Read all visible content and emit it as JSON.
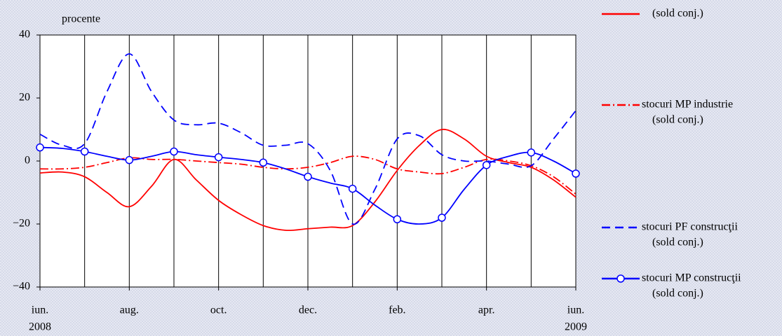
{
  "chart_data": {
    "type": "line",
    "y_axis_label": "procente",
    "x": [
      0,
      0.5,
      1,
      1.5,
      2,
      2.5,
      3,
      3.5,
      4,
      4.5,
      5,
      5.5,
      6,
      6.5,
      7,
      7.5,
      8,
      8.5,
      9,
      9.5,
      10,
      10.5,
      11,
      11.5,
      12
    ],
    "xlim": [
      0,
      12
    ],
    "xticks": [
      {
        "value": 0,
        "label": "iun."
      },
      {
        "value": 2,
        "label": "aug."
      },
      {
        "value": 4,
        "label": "oct."
      },
      {
        "value": 6,
        "label": "dec."
      },
      {
        "value": 8,
        "label": "feb."
      },
      {
        "value": 10,
        "label": "apr."
      },
      {
        "value": 12,
        "label": "iun."
      }
    ],
    "year_labels": [
      {
        "value": 0,
        "label": "2008"
      },
      {
        "value": 12,
        "label": "2009"
      }
    ],
    "xgrid": [
      1,
      2,
      3,
      4,
      5,
      6,
      7,
      8,
      9,
      10,
      11
    ],
    "ylim": [
      -40,
      40
    ],
    "yticks": [
      {
        "value": 40,
        "label": "40"
      },
      {
        "value": 20,
        "label": "20"
      },
      {
        "value": 0,
        "label": "0"
      },
      {
        "value": -20,
        "label": "−20"
      },
      {
        "value": -40,
        "label": "−40"
      }
    ],
    "series": [
      {
        "name": [
          "(sold conj.)"
        ],
        "color": "#ff0000",
        "dash": "none",
        "markers": false,
        "values": [
          -3.8,
          -3.5,
          -5,
          -10,
          -14.5,
          -8,
          0.5,
          -6,
          -12.5,
          -17,
          -20.5,
          -22,
          -21.5,
          -21,
          -20.5,
          -13,
          -3,
          5,
          10,
          7,
          1.5,
          -0.5,
          -2,
          -6,
          -11.5
        ]
      },
      {
        "name": [
          "stocuri MP industrie",
          "(sold conj.)"
        ],
        "color": "#ff0000",
        "dash": "12 4 2 4",
        "markers": false,
        "values": [
          -2.5,
          -2.5,
          -2,
          -0.5,
          1,
          0.5,
          0.5,
          0,
          -0.5,
          -1,
          -2,
          -2.5,
          -2,
          -0.5,
          1.5,
          0.5,
          -2.5,
          -3.5,
          -4,
          -2,
          0.5,
          0,
          -1.5,
          -5,
          -10.5
        ]
      },
      {
        "name": [
          "stocuri PF construcţii",
          "(sold conj.)"
        ],
        "color": "#0000ff",
        "dash": "12 7",
        "markers": false,
        "values": [
          8.5,
          5,
          5.5,
          22,
          34,
          22,
          13,
          11.5,
          12,
          9,
          5,
          5,
          5.5,
          -3,
          -20,
          -9,
          7,
          8,
          2,
          0,
          0,
          -1,
          -1.5,
          7,
          16
        ]
      },
      {
        "name": [
          "stocuri MP construcţii",
          "(sold conj.)"
        ],
        "color": "#0000ff",
        "dash": "none",
        "markers": true,
        "values": [
          4.3,
          4,
          3,
          1.5,
          0.3,
          1.5,
          3,
          2,
          1.2,
          0.5,
          -0.5,
          -2.5,
          -5,
          -7,
          -8.8,
          -14,
          -18.5,
          -20,
          -18,
          -9,
          -1.3,
          1.5,
          2.7,
          0,
          -4
        ]
      }
    ]
  }
}
